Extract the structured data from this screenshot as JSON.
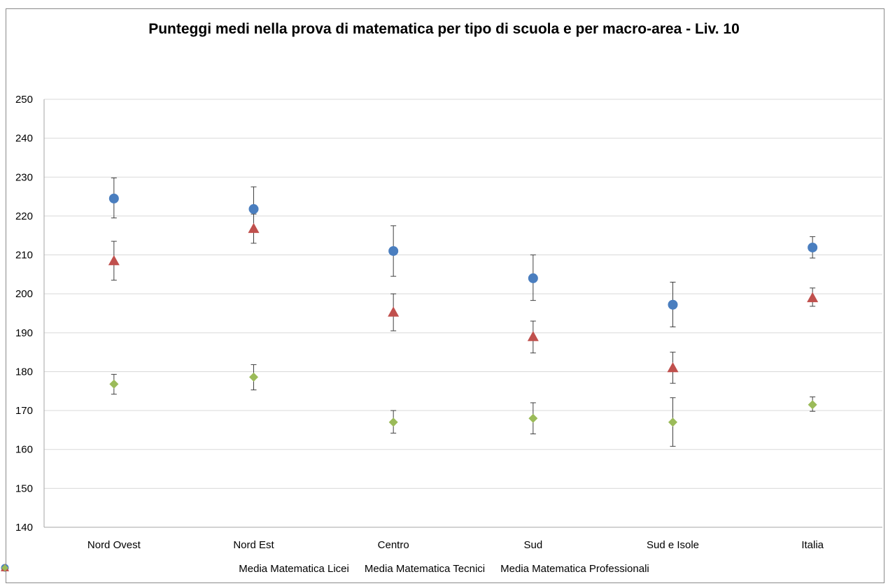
{
  "chart_data": {
    "type": "scatter",
    "title": "Punteggi medi nella prova di matematica per tipo di scuola e per macro-area - Liv. 10",
    "xlabel": "",
    "ylabel": "",
    "categories": [
      "Nord Ovest",
      "Nord Est",
      "Centro",
      "Sud",
      "Sud e Isole",
      "Italia"
    ],
    "ylim": [
      140,
      250
    ],
    "yticks": [
      140,
      150,
      160,
      170,
      180,
      190,
      200,
      210,
      220,
      230,
      240,
      250
    ],
    "grid": true,
    "legend_position": "bottom",
    "series": [
      {
        "name": "Media Matematica Licei",
        "marker": "circle",
        "color": "#4a7ebf",
        "values": [
          224.5,
          221.8,
          211.0,
          204.0,
          197.2,
          211.9
        ],
        "error_low": [
          219.5,
          216.5,
          204.5,
          198.3,
          191.5,
          209.2
        ],
        "error_high": [
          229.8,
          227.5,
          217.5,
          210.0,
          203.0,
          214.7
        ]
      },
      {
        "name": "Media Matematica Tecnici",
        "marker": "triangle",
        "color": "#c0504d",
        "values": [
          208.5,
          216.8,
          195.3,
          189.0,
          181.0,
          199.0
        ],
        "error_low": [
          203.5,
          213.0,
          190.5,
          184.8,
          177.0,
          196.8
        ],
        "error_high": [
          213.5,
          220.5,
          200.0,
          193.0,
          185.0,
          201.5
        ]
      },
      {
        "name": "Media Matematica Professionali",
        "marker": "diamond",
        "color": "#9bbb59",
        "values": [
          176.8,
          178.6,
          167.0,
          168.0,
          167.0,
          171.5
        ],
        "error_low": [
          174.2,
          175.3,
          164.2,
          164.0,
          160.8,
          169.8
        ],
        "error_high": [
          179.3,
          181.8,
          170.0,
          172.0,
          173.3,
          173.5
        ]
      }
    ]
  }
}
